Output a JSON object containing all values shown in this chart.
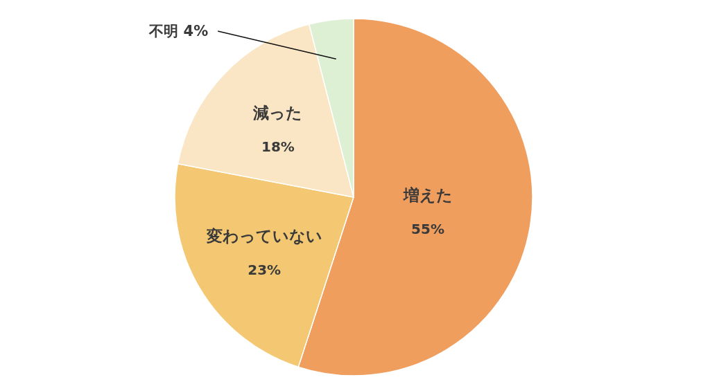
{
  "chart_data": {
    "type": "pie",
    "categories": [
      "増えた",
      "変わっていない",
      "減った",
      "不明"
    ],
    "values": [
      55,
      23,
      18,
      4
    ],
    "colors": [
      "#f09e5e",
      "#f4c872",
      "#fae6c4",
      "#ddf0d4"
    ],
    "value_labels": [
      "55%",
      "23%",
      "18%",
      "4%"
    ]
  }
}
